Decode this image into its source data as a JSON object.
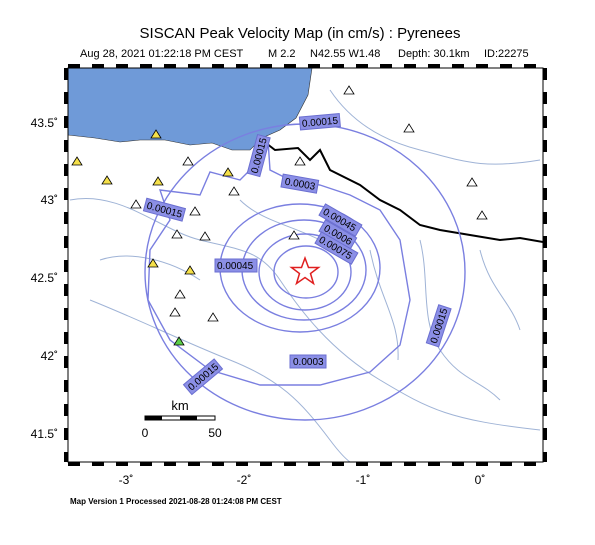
{
  "header": {
    "title": "SISCAN Peak Velocity Map (in cm/s) : Pyrenees",
    "date": "Aug 28, 2021 01:22:18 PM CEST",
    "magnitude": "M 2.2",
    "location": "N42.55 W1.48",
    "depth": "Depth: 30.1km",
    "id": "ID:22275"
  },
  "axes": {
    "lon_ticks": [
      "-3˚",
      "-2˚",
      "-1˚",
      "0˚"
    ],
    "lat_ticks": [
      "43.5˚",
      "43˚",
      "42.5˚",
      "42˚",
      "41.5˚"
    ]
  },
  "contours": [
    "0.00015",
    "0.0003",
    "0.00045",
    "0.0006",
    "0.00075",
    "0.0009"
  ],
  "scale_bar": {
    "unit": "km",
    "start": "0",
    "end": "50"
  },
  "footer": "Map Version 1 Processed 2021-08-28 01:24:08 PM CEST"
}
